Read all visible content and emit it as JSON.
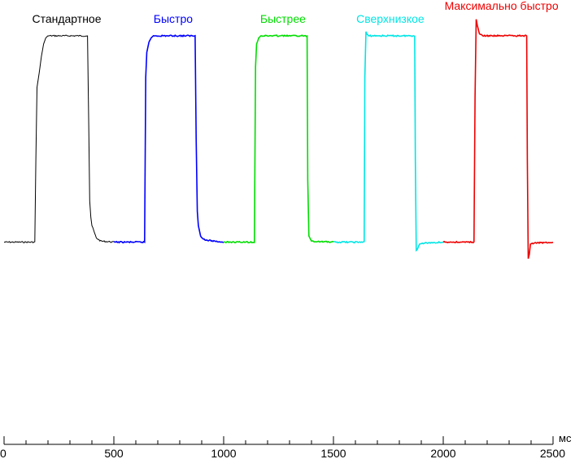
{
  "chart_data": {
    "type": "line",
    "title": "",
    "xlabel": "",
    "ylabel": "",
    "x_unit": "мс",
    "xlim": [
      0,
      2500
    ],
    "xticks": [
      0,
      500,
      1000,
      1500,
      2000,
      2500
    ],
    "x_minor_step": 100,
    "ylim": [
      -5,
      110
    ],
    "grid": false,
    "legend": "none",
    "series": [
      {
        "name": "Стандартное",
        "color": "#000000",
        "points": [
          [
            0,
            0
          ],
          [
            140,
            0
          ],
          [
            145,
            40
          ],
          [
            150,
            75
          ],
          [
            160,
            82
          ],
          [
            170,
            90
          ],
          [
            180,
            96
          ],
          [
            190,
            99
          ],
          [
            200,
            100
          ],
          [
            380,
            100
          ],
          [
            385,
            60
          ],
          [
            390,
            20
          ],
          [
            395,
            12
          ],
          [
            400,
            8
          ],
          [
            420,
            2
          ],
          [
            440,
            0.5
          ],
          [
            500,
            0
          ]
        ]
      },
      {
        "name": "Быстро",
        "color": "#0000ff",
        "points": [
          [
            500,
            0
          ],
          [
            640,
            0
          ],
          [
            645,
            80
          ],
          [
            650,
            92
          ],
          [
            660,
            97
          ],
          [
            670,
            99
          ],
          [
            680,
            100
          ],
          [
            870,
            100
          ],
          [
            875,
            50
          ],
          [
            880,
            15
          ],
          [
            885,
            8
          ],
          [
            895,
            3
          ],
          [
            915,
            1
          ],
          [
            1000,
            0
          ]
        ]
      },
      {
        "name": "Быстрее",
        "color": "#00dd00",
        "points": [
          [
            1000,
            0
          ],
          [
            1140,
            0
          ],
          [
            1145,
            85
          ],
          [
            1150,
            96
          ],
          [
            1160,
            99
          ],
          [
            1170,
            100
          ],
          [
            1380,
            100
          ],
          [
            1383,
            30
          ],
          [
            1388,
            3
          ],
          [
            1400,
            0.5
          ],
          [
            1500,
            0
          ]
        ]
      },
      {
        "name": "Сверхнизкое",
        "color": "#00e5e5",
        "points": [
          [
            1500,
            0
          ],
          [
            1640,
            0
          ],
          [
            1643,
            80
          ],
          [
            1648,
            102
          ],
          [
            1652,
            101
          ],
          [
            1660,
            100
          ],
          [
            1870,
            100
          ],
          [
            1873,
            40
          ],
          [
            1877,
            -4
          ],
          [
            1882,
            -3.5
          ],
          [
            1892,
            -1
          ],
          [
            1905,
            -0.5
          ],
          [
            2000,
            0
          ]
        ]
      },
      {
        "name": "Максимально быстро",
        "color": "#ee0000",
        "points": [
          [
            2000,
            0
          ],
          [
            2140,
            0
          ],
          [
            2145,
            70
          ],
          [
            2150,
            108
          ],
          [
            2155,
            105
          ],
          [
            2165,
            101
          ],
          [
            2180,
            100
          ],
          [
            2380,
            100
          ],
          [
            2383,
            40
          ],
          [
            2387,
            -8
          ],
          [
            2392,
            -6
          ],
          [
            2397,
            -1
          ],
          [
            2405,
            -0.5
          ],
          [
            2500,
            0
          ]
        ]
      }
    ]
  }
}
